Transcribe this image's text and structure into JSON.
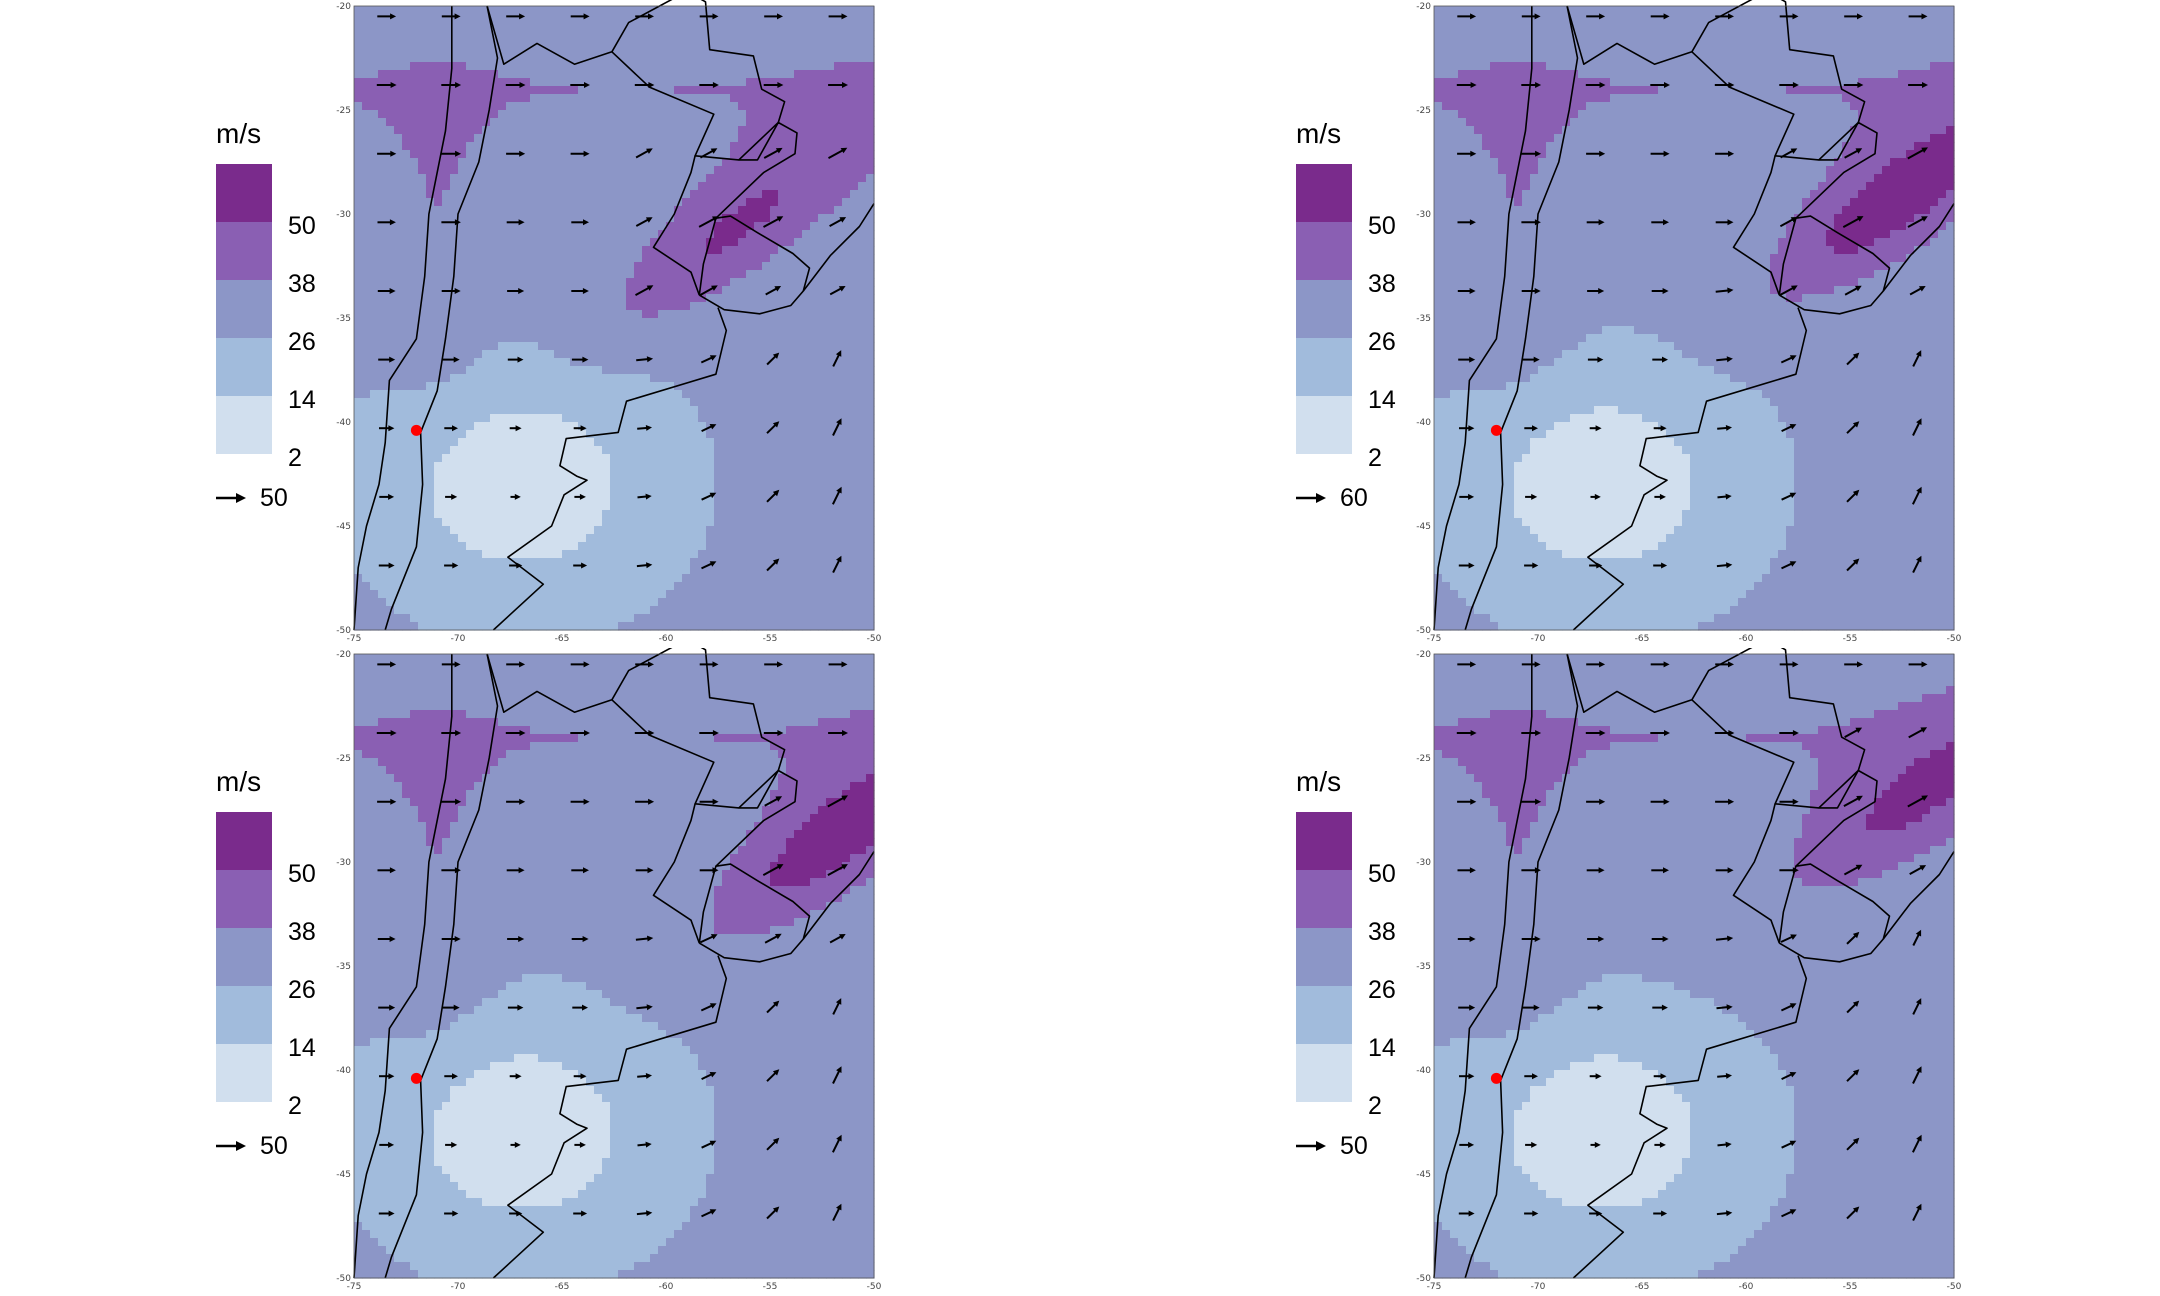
{
  "colors": {
    "band_2_14": "#d1dfee",
    "band_14_26": "#a1bbdc",
    "band_26_38": "#8c96c7",
    "band_38_50": "#8a5fb3",
    "band_50_plus": "#7a2b8c",
    "marker": "#ff0000",
    "coastline": "#000000"
  },
  "legend_levels": [
    "50",
    "38",
    "26",
    "14",
    "2"
  ],
  "units": "m/s",
  "x_ticks": [
    "-75",
    "-70",
    "-65",
    "-60",
    "-55",
    "-50"
  ],
  "y_ticks": [
    "-20",
    "-25",
    "-30",
    "-35",
    "-40",
    "-45",
    "-50"
  ],
  "extent": {
    "lon": [
      -75,
      -50
    ],
    "lat": [
      -50,
      -20
    ]
  },
  "marker_location": {
    "lon": -72,
    "lat": -40.4
  },
  "panels": [
    {
      "ref_vector": "50",
      "jet_center": {
        "lon": -57,
        "lat": -31
      },
      "jet_strength": 0.8
    },
    {
      "ref_vector": "60",
      "jet_center": {
        "lon": -53,
        "lat": -29.5
      },
      "jet_strength": 1.0
    },
    {
      "ref_vector": "50",
      "jet_center": {
        "lon": -52,
        "lat": -29
      },
      "jet_strength": 0.95
    },
    {
      "ref_vector": "50",
      "jet_center": {
        "lon": -52,
        "lat": -27
      },
      "jet_strength": 0.7
    }
  ]
}
